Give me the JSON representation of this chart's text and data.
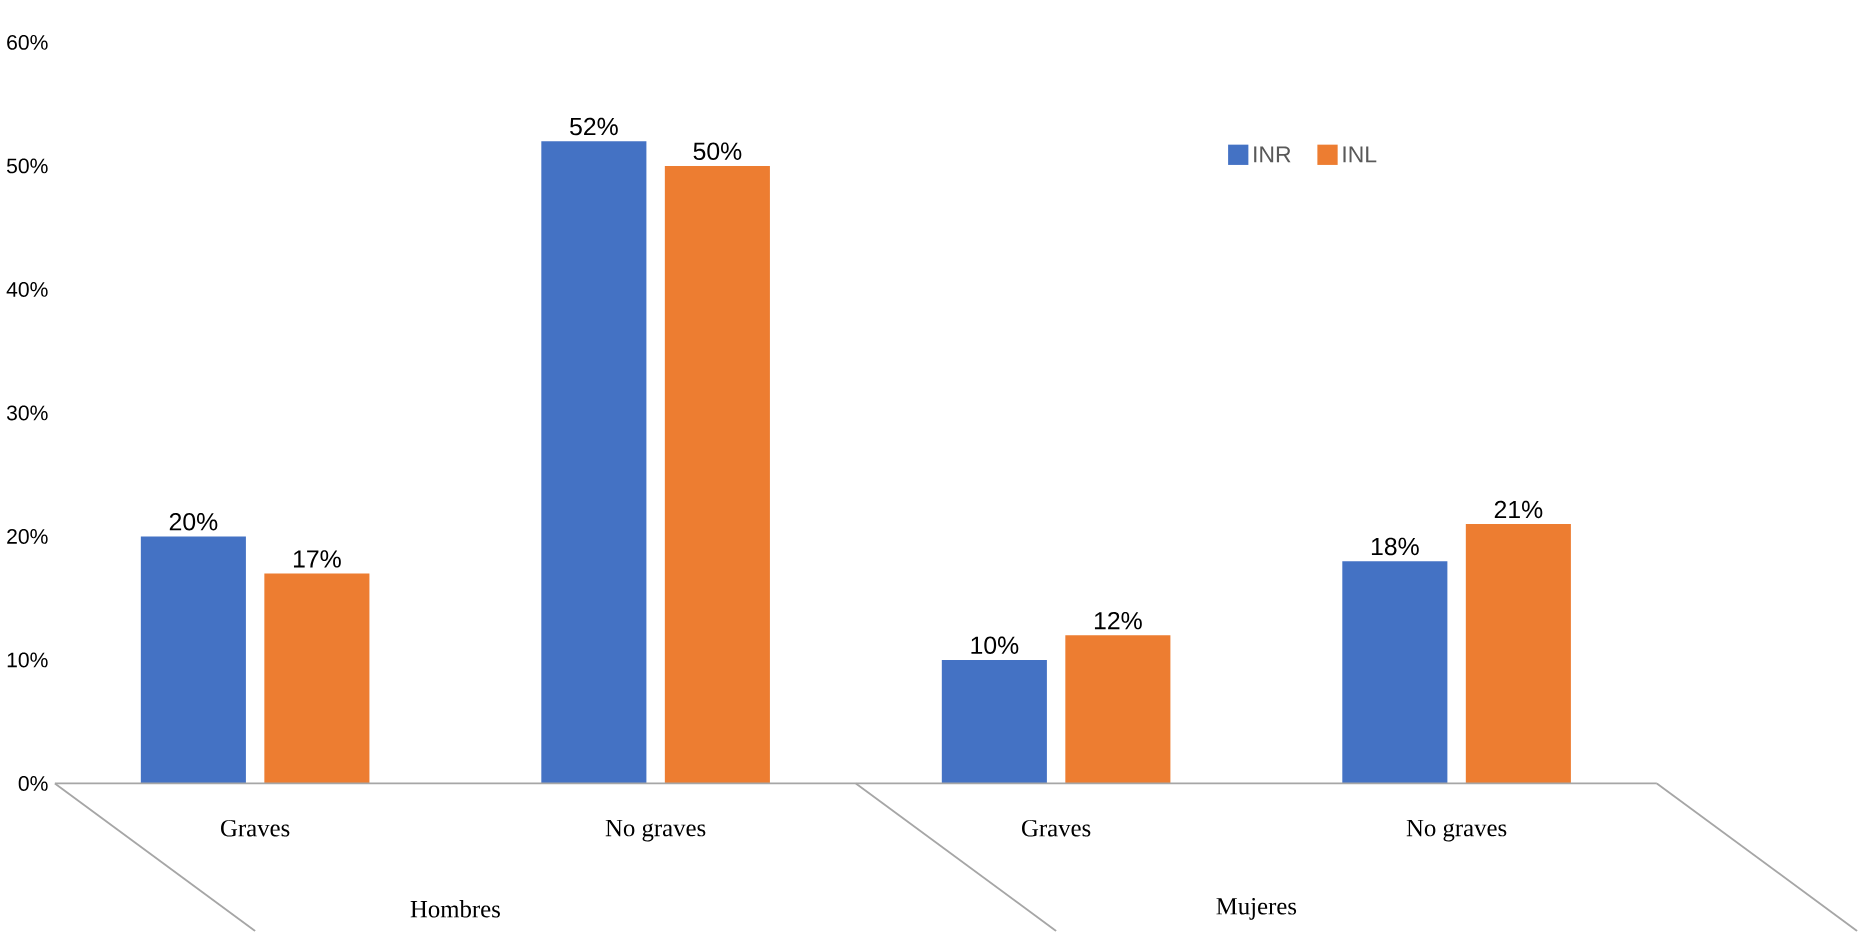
{
  "chart_data": {
    "type": "bar",
    "categories": [
      "Graves",
      "No graves",
      "Graves",
      "No graves"
    ],
    "series": [
      {
        "name": "INR",
        "color": "#4472c4",
        "values": [
          20,
          52,
          10,
          18
        ],
        "value_labels": [
          "20%",
          "52%",
          "10%",
          "18%"
        ]
      },
      {
        "name": "INL",
        "color": "#ed7d31",
        "values": [
          17,
          50,
          12,
          21
        ],
        "value_labels": [
          "17%",
          "50%",
          "12%",
          "21%"
        ]
      }
    ],
    "ylim": [
      0,
      60
    ],
    "yticks": [
      {
        "value": 0,
        "label": "0%"
      },
      {
        "value": 10,
        "label": "10%"
      },
      {
        "value": 20,
        "label": "20%"
      },
      {
        "value": 30,
        "label": "30%"
      },
      {
        "value": 40,
        "label": "40%"
      },
      {
        "value": 50,
        "label": "50%"
      },
      {
        "value": 60,
        "label": "60%"
      }
    ],
    "annotations": [
      "Hombres",
      "Mujeres"
    ],
    "grid": false,
    "legend": "top right"
  }
}
